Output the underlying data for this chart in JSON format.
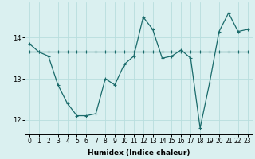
{
  "xlabel": "Humidex (Indice chaleur)",
  "ylabel": "",
  "bg_color": "#daf0f0",
  "grid_color": "#b8dede",
  "line_color": "#1a6b6b",
  "xlim": [
    -0.5,
    23.5
  ],
  "ylim": [
    11.65,
    14.85
  ],
  "yticks": [
    12,
    13,
    14
  ],
  "xticks": [
    0,
    1,
    2,
    3,
    4,
    5,
    6,
    7,
    8,
    9,
    10,
    11,
    12,
    13,
    14,
    15,
    16,
    17,
    18,
    19,
    20,
    21,
    22,
    23
  ],
  "line1_x": [
    0,
    1,
    2,
    3,
    4,
    5,
    6,
    7,
    8,
    9,
    10,
    11,
    12,
    13,
    14,
    15,
    16,
    17,
    18,
    19,
    20,
    21,
    22,
    23
  ],
  "line1_y": [
    13.85,
    13.65,
    13.55,
    12.85,
    12.4,
    12.1,
    12.1,
    12.15,
    13.0,
    12.85,
    13.35,
    13.55,
    14.5,
    14.2,
    13.5,
    13.55,
    13.7,
    13.5,
    11.8,
    12.9,
    14.15,
    14.6,
    14.15,
    14.2
  ],
  "line2_x": [
    0,
    1,
    2,
    3,
    4,
    5,
    6,
    7,
    8,
    9,
    10,
    11,
    12,
    13,
    14,
    15,
    16,
    17,
    18,
    19,
    20,
    21,
    22,
    23
  ],
  "line2_y": [
    13.65,
    13.65,
    13.65,
    13.65,
    13.65,
    13.65,
    13.65,
    13.65,
    13.65,
    13.65,
    13.65,
    13.65,
    13.65,
    13.65,
    13.65,
    13.65,
    13.65,
    13.65,
    13.65,
    13.65,
    13.65,
    13.65,
    13.65,
    13.65
  ],
  "marker_size": 3,
  "linewidth": 0.9,
  "tick_fontsize": 5.5,
  "xlabel_fontsize": 6.5
}
